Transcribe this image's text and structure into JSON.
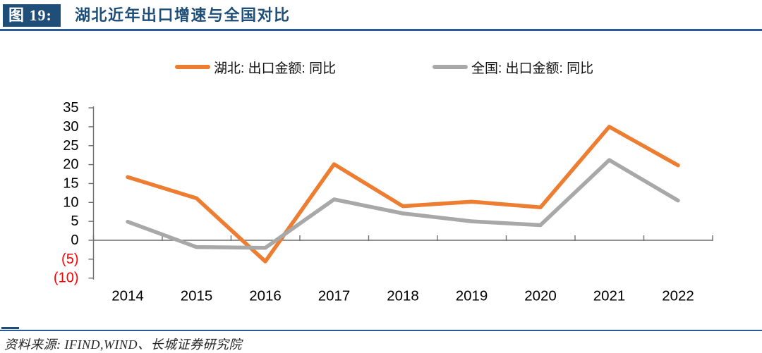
{
  "figure": {
    "label": "图 19:",
    "title": "湖北近年出口增速与全国对比",
    "source": "资料来源: IFIND,WIND、长城证券研究院"
  },
  "legend": {
    "items": [
      {
        "label": "湖北: 出口金额: 同比",
        "color": "#ED7D31"
      },
      {
        "label": "全国: 出口金额: 同比",
        "color": "#A8A8A8"
      }
    ]
  },
  "chart_data": {
    "type": "line",
    "title": "湖北近年出口增速与全国对比",
    "categories": [
      "2014",
      "2015",
      "2016",
      "2017",
      "2018",
      "2019",
      "2020",
      "2021",
      "2022"
    ],
    "series": [
      {
        "name": "湖北: 出口金额: 同比",
        "color": "#ED7D31",
        "values": [
          16.7,
          11.1,
          -5.6,
          20.1,
          9.0,
          10.2,
          8.7,
          30.0,
          19.8
        ]
      },
      {
        "name": "全国: 出口金额: 同比",
        "color": "#A8A8A8",
        "values": [
          4.9,
          -1.8,
          -2.0,
          10.8,
          7.1,
          5.0,
          4.0,
          21.2,
          10.5
        ]
      }
    ],
    "xlabel": "",
    "ylabel": "",
    "ylim": [
      -10,
      35
    ],
    "ytick_step": 5,
    "ytick_labels": [
      "35",
      "30",
      "25",
      "20",
      "15",
      "10",
      "5",
      "0",
      "(5)",
      "(10)"
    ],
    "negative_tick_color": "#FF0000",
    "tick_label_color": "#000000",
    "axis_color": "#6E6E6E",
    "grid": false,
    "legend_position": "top"
  },
  "colors": {
    "accent_navy": "#1F4E79",
    "rule_blue": "#2C5898",
    "hubei_orange": "#ED7D31",
    "national_gray": "#A8A8A8",
    "negative_red": "#FF0000"
  }
}
